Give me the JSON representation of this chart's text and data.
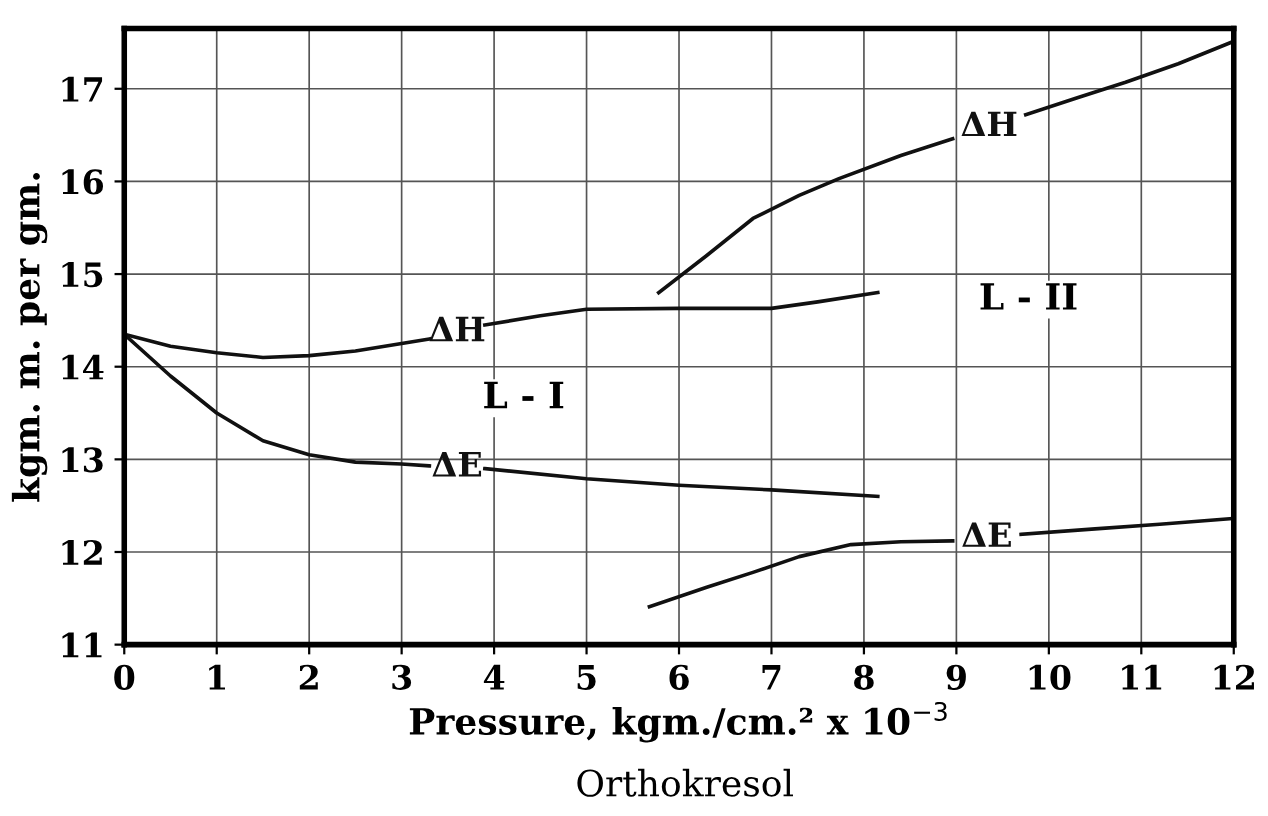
{
  "chart_data": {
    "type": "line",
    "xlabel": "Pressure, kgm./cm.² x 10$^{−3}$",
    "ylabel": "kgm. m. per gm.",
    "xlim": [
      0,
      12
    ],
    "ylim": [
      11,
      17.65
    ],
    "xticks": [
      0,
      1,
      2,
      3,
      4,
      5,
      6,
      7,
      8,
      9,
      10,
      11,
      12
    ],
    "yticks": [
      11,
      12,
      13,
      14,
      15,
      16,
      17
    ],
    "grid": true,
    "marker": "none",
    "line_style": "solid",
    "series": [
      {
        "name": "ΔH",
        "color": "#111111",
        "x": [
          0,
          0.5,
          1,
          1.5,
          2,
          2.5,
          3,
          3.3,
          3.6,
          3.9,
          4.5,
          5,
          6,
          7,
          7.5,
          8.15
        ],
        "values": [
          14.35,
          14.22,
          14.15,
          14.1,
          14.12,
          14.17,
          14.25,
          14.3,
          null,
          14.45,
          14.55,
          14.62,
          14.63,
          14.63,
          14.7,
          14.8
        ]
      },
      {
        "name": "ΔE",
        "color": "#111111",
        "x": [
          0,
          0.5,
          1,
          1.5,
          2,
          2.5,
          3,
          3.3,
          3.6,
          3.9,
          5,
          6,
          7,
          8.15
        ],
        "values": [
          14.35,
          13.9,
          13.5,
          13.2,
          13.05,
          12.97,
          12.95,
          12.93,
          null,
          12.9,
          12.79,
          12.72,
          12.67,
          12.6
        ]
      },
      {
        "name": "ΔH",
        "color": "#111111",
        "x": [
          5.78,
          6.3,
          6.8,
          7.3,
          7.73,
          8.4,
          8.96,
          9.35,
          9.75,
          10.3,
          10.83,
          11.4,
          11.97
        ],
        "values": [
          14.8,
          15.2,
          15.6,
          15.85,
          16.03,
          16.28,
          16.46,
          null,
          16.72,
          16.9,
          17.07,
          17.27,
          17.5
        ]
      },
      {
        "name": "ΔE",
        "color": "#111111",
        "x": [
          5.68,
          6.3,
          6.8,
          7.3,
          7.86,
          8.4,
          8.96,
          9.35,
          9.7,
          10.5,
          11.2,
          11.97
        ],
        "values": [
          11.41,
          11.62,
          11.78,
          11.95,
          12.08,
          12.11,
          12.12,
          null,
          12.19,
          12.25,
          12.3,
          12.36
        ]
      }
    ],
    "annotations": [
      "L - I",
      "L - II",
      "Orthokresol"
    ]
  }
}
